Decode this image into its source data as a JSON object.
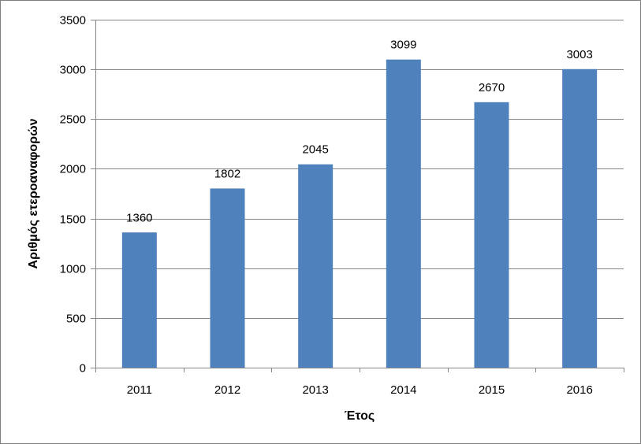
{
  "chart_data": {
    "type": "bar",
    "categories": [
      "2011",
      "2012",
      "2013",
      "2014",
      "2015",
      "2016"
    ],
    "values": [
      1360,
      1802,
      2045,
      3099,
      2670,
      3003
    ],
    "title": "",
    "xlabel": "Έτος",
    "ylabel": "Αριθμός ετεροαναφορών",
    "ylim": [
      0,
      3500
    ],
    "yticks": [
      0,
      500,
      1000,
      1500,
      2000,
      2500,
      3000,
      3500
    ],
    "grid": true,
    "legend": "none",
    "data_labels": true
  },
  "colors": {
    "bar": "#4f81bd",
    "grid": "#868686",
    "axis": "#868686",
    "border": "#7f7f7f"
  }
}
